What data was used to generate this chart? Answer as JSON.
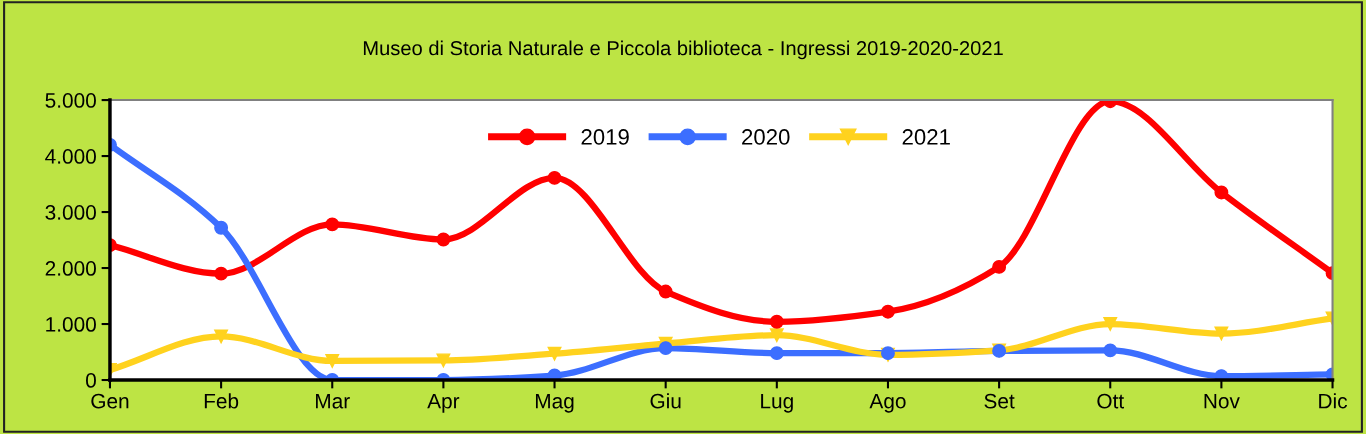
{
  "chart_data": {
    "type": "line",
    "title": "Museo di Storia Naturale e Piccola biblioteca - Ingressi 2019-2020-2021",
    "categories": [
      "Gen",
      "Feb",
      "Mar",
      "Apr",
      "Mag",
      "Giu",
      "Lug",
      "Ago",
      "Set",
      "Ott",
      "Nov",
      "Dic"
    ],
    "series": [
      {
        "name": "2019",
        "color": "#ff0000",
        "marker": "circle",
        "values": [
          2410,
          1900,
          2780,
          2510,
          3610,
          1580,
          1040,
          1220,
          2020,
          4980,
          3350,
          1910
        ]
      },
      {
        "name": "2020",
        "color": "#3c6eff",
        "marker": "circle",
        "values": [
          4200,
          2720,
          0,
          0,
          80,
          570,
          480,
          480,
          520,
          530,
          70,
          100
        ]
      },
      {
        "name": "2021",
        "color": "#ffd21e",
        "marker": "triangle",
        "values": [
          180,
          780,
          340,
          350,
          470,
          650,
          800,
          450,
          530,
          1000,
          830,
          1100
        ]
      }
    ],
    "ylim": [
      0,
      5000
    ],
    "yticks": [
      {
        "value": 0,
        "label": "0"
      },
      {
        "value": 1000,
        "label": "1.000"
      },
      {
        "value": 2000,
        "label": "2.000"
      },
      {
        "value": 3000,
        "label": "3.000"
      },
      {
        "value": 4000,
        "label": "4.000"
      },
      {
        "value": 5000,
        "label": "5.000"
      }
    ],
    "grid": false,
    "legend": "top",
    "line_style": "solid"
  }
}
